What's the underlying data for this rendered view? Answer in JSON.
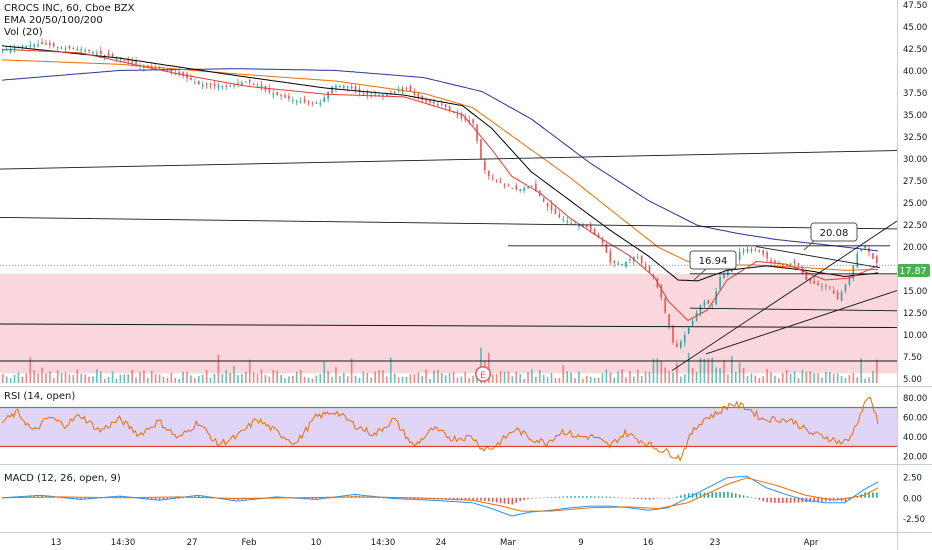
{
  "colors": {
    "up": "#26a69a",
    "down": "#ef5350",
    "ema20": "#e53935",
    "ema50": "#000000",
    "ema100": "#ef6c00",
    "ema200": "#283593",
    "rsi_line": "#ef6c00",
    "rsi_upper": "#43a047",
    "rsi_lower": "#e53935",
    "rsi_band": "#e1d5f7",
    "zone": "#f8c9d2",
    "macd_line": "#2196f3",
    "signal_line": "#ef6c00",
    "price_badge": "#4caf50"
  },
  "main": {
    "title": "CROCS INC, 60, Cboe BZX",
    "ema_label": "EMA 20/50/100/200",
    "vol_label": "Vol (20)",
    "price_badge": "17.87",
    "callout_low": "16.94",
    "callout_high": "20.08",
    "earnings_marker": "E"
  },
  "rsi": {
    "label": "RSI (14, open)"
  },
  "macd": {
    "label": "MACD (12, 26, open, 9)"
  },
  "chart_data": [
    {
      "type": "candlestick",
      "title": "CROCS INC, 60, Cboe BZX",
      "y_ticks": [
        "47.50",
        "45.00",
        "42.50",
        "40.00",
        "37.50",
        "35.00",
        "32.50",
        "30.00",
        "27.50",
        "25.00",
        "22.50",
        "20.00",
        "17.50",
        "15.00",
        "12.50",
        "10.00",
        "7.50",
        "5.00"
      ],
      "ylim": [
        4.5,
        48
      ],
      "x_ticks": [
        "13",
        "14:30",
        "27",
        "Feb",
        "10",
        "14:30",
        "24",
        "Mar",
        "9",
        "16",
        "23",
        "Apr"
      ],
      "price_path": [
        [
          0,
          42.3
        ],
        [
          10,
          42.8
        ],
        [
          20,
          43.0
        ],
        [
          30,
          42.6
        ],
        [
          40,
          42.4
        ],
        [
          55,
          41.6
        ],
        [
          70,
          40.6
        ],
        [
          90,
          39.6
        ],
        [
          100,
          38.4
        ],
        [
          115,
          38.2
        ],
        [
          125,
          38.8
        ],
        [
          135,
          37.6
        ],
        [
          150,
          36.5
        ],
        [
          162,
          36.3
        ],
        [
          168,
          38.2
        ],
        [
          175,
          38.3
        ],
        [
          185,
          37.2
        ],
        [
          197,
          37.3
        ],
        [
          205,
          38.1
        ],
        [
          215,
          36.5
        ],
        [
          225,
          36.0
        ],
        [
          235,
          34.4
        ],
        [
          240,
          34.0
        ],
        [
          243,
          31.0
        ],
        [
          245,
          29.0
        ],
        [
          248,
          28.0
        ],
        [
          252,
          27.5
        ],
        [
          257,
          26.9
        ],
        [
          263,
          26.4
        ],
        [
          270,
          26.9
        ],
        [
          278,
          24.5
        ],
        [
          284,
          23.3
        ],
        [
          291,
          22.6
        ],
        [
          297,
          22.4
        ],
        [
          305,
          20.9
        ],
        [
          310,
          18.2
        ],
        [
          316,
          18.0
        ],
        [
          323,
          19.0
        ],
        [
          327,
          17.8
        ],
        [
          332,
          16.5
        ],
        [
          336,
          14.2
        ],
        [
          340,
          10.8
        ],
        [
          343,
          8.3
        ],
        [
          347,
          9.5
        ],
        [
          352,
          11.6
        ],
        [
          357,
          13.8
        ],
        [
          362,
          13.3
        ],
        [
          366,
          16.5
        ],
        [
          372,
          17.8
        ],
        [
          376,
          19.4
        ],
        [
          381,
          19.8
        ],
        [
          387,
          19.3
        ],
        [
          392,
          18.2
        ],
        [
          398,
          17.9
        ],
        [
          404,
          18.1
        ],
        [
          410,
          16.2
        ],
        [
          416,
          15.6
        ],
        [
          422,
          15.3
        ],
        [
          426,
          14.0
        ],
        [
          432,
          16.5
        ],
        [
          436,
          19.2
        ],
        [
          440,
          20.1
        ],
        [
          444,
          18.6
        ],
        [
          447,
          17.87
        ]
      ],
      "ema20_path": [
        [
          0,
          42.4
        ],
        [
          40,
          42.0
        ],
        [
          90,
          39.6
        ],
        [
          125,
          38.2
        ],
        [
          165,
          37.3
        ],
        [
          205,
          37.0
        ],
        [
          235,
          35.0
        ],
        [
          250,
          31.0
        ],
        [
          260,
          28.0
        ],
        [
          275,
          26.0
        ],
        [
          290,
          23.2
        ],
        [
          305,
          21.0
        ],
        [
          320,
          19.0
        ],
        [
          333,
          16.5
        ],
        [
          340,
          13.8
        ],
        [
          350,
          11.6
        ],
        [
          360,
          12.8
        ],
        [
          370,
          16.2
        ],
        [
          385,
          18.3
        ],
        [
          400,
          18.0
        ],
        [
          420,
          16.2
        ],
        [
          432,
          16.4
        ],
        [
          447,
          17.8
        ]
      ],
      "ema50_path": [
        [
          0,
          42.8
        ],
        [
          60,
          41.4
        ],
        [
          120,
          39.4
        ],
        [
          165,
          38.0
        ],
        [
          205,
          37.2
        ],
        [
          235,
          36.0
        ],
        [
          250,
          33.4
        ],
        [
          270,
          28.5
        ],
        [
          290,
          25.2
        ],
        [
          310,
          21.9
        ],
        [
          330,
          18.9
        ],
        [
          345,
          16.2
        ],
        [
          355,
          16.1
        ],
        [
          370,
          17.3
        ],
        [
          390,
          17.8
        ],
        [
          410,
          17.3
        ],
        [
          430,
          16.6
        ],
        [
          447,
          17.0
        ]
      ],
      "ema100_path": [
        [
          0,
          41.2
        ],
        [
          60,
          40.7
        ],
        [
          120,
          39.6
        ],
        [
          170,
          38.8
        ],
        [
          215,
          37.4
        ],
        [
          240,
          35.8
        ],
        [
          260,
          32.6
        ],
        [
          290,
          27.8
        ],
        [
          315,
          23.4
        ],
        [
          335,
          19.9
        ],
        [
          350,
          18.3
        ],
        [
          365,
          17.9
        ],
        [
          385,
          17.9
        ],
        [
          410,
          17.6
        ],
        [
          430,
          17.3
        ],
        [
          447,
          17.4
        ]
      ],
      "ema200_path": [
        [
          0,
          38.9
        ],
        [
          60,
          40.0
        ],
        [
          120,
          40.2
        ],
        [
          170,
          40.0
        ],
        [
          215,
          39.2
        ],
        [
          245,
          37.6
        ],
        [
          270,
          34.5
        ],
        [
          300,
          29.5
        ],
        [
          330,
          25.2
        ],
        [
          355,
          22.4
        ],
        [
          375,
          21.5
        ],
        [
          395,
          20.8
        ],
        [
          420,
          20.2
        ],
        [
          447,
          19.5
        ]
      ],
      "horizontal_levels": [
        20.08,
        17.87
      ],
      "lower_zone": [
        5.6,
        16.9
      ]
    },
    {
      "type": "line",
      "title": "RSI (14, open)",
      "y_ticks": [
        "80.00",
        "60.00",
        "40.00",
        "20.00"
      ],
      "ylim": [
        14,
        90
      ],
      "levels": [
        70,
        30
      ],
      "rsi_path": [
        [
          0,
          55
        ],
        [
          8,
          65
        ],
        [
          16,
          45
        ],
        [
          24,
          60
        ],
        [
          32,
          52
        ],
        [
          40,
          62
        ],
        [
          50,
          46
        ],
        [
          60,
          58
        ],
        [
          70,
          42
        ],
        [
          80,
          56
        ],
        [
          90,
          38
        ],
        [
          100,
          55
        ],
        [
          110,
          32
        ],
        [
          120,
          40
        ],
        [
          130,
          58
        ],
        [
          140,
          45
        ],
        [
          150,
          33
        ],
        [
          160,
          60
        ],
        [
          170,
          66
        ],
        [
          180,
          52
        ],
        [
          190,
          42
        ],
        [
          200,
          58
        ],
        [
          210,
          30
        ],
        [
          220,
          48
        ],
        [
          230,
          38
        ],
        [
          240,
          40
        ],
        [
          245,
          28
        ],
        [
          250,
          28
        ],
        [
          255,
          36
        ],
        [
          262,
          48
        ],
        [
          270,
          38
        ],
        [
          278,
          34
        ],
        [
          286,
          46
        ],
        [
          294,
          40
        ],
        [
          302,
          40
        ],
        [
          310,
          30
        ],
        [
          318,
          44
        ],
        [
          326,
          36
        ],
        [
          334,
          28
        ],
        [
          340,
          24
        ],
        [
          346,
          18
        ],
        [
          352,
          44
        ],
        [
          358,
          58
        ],
        [
          365,
          64
        ],
        [
          372,
          74
        ],
        [
          380,
          70
        ],
        [
          388,
          58
        ],
        [
          396,
          58
        ],
        [
          404,
          56
        ],
        [
          412,
          44
        ],
        [
          420,
          40
        ],
        [
          428,
          34
        ],
        [
          432,
          36
        ],
        [
          437,
          58
        ],
        [
          442,
          82
        ],
        [
          447,
          56
        ]
      ]
    },
    {
      "type": "bar",
      "title": "MACD (12, 26, open, 9)",
      "y_ticks": [
        "2.50",
        "0.00",
        "-2.50"
      ],
      "ylim": [
        -4,
        3.7
      ],
      "macd_path": [
        [
          0,
          0
        ],
        [
          20,
          0.3
        ],
        [
          40,
          -0.2
        ],
        [
          60,
          0.2
        ],
        [
          80,
          -0.3
        ],
        [
          100,
          0.3
        ],
        [
          120,
          -0.4
        ],
        [
          140,
          0.1
        ],
        [
          160,
          -0.2
        ],
        [
          180,
          0.4
        ],
        [
          200,
          -0.1
        ],
        [
          220,
          -0.3
        ],
        [
          240,
          -0.6
        ],
        [
          250,
          -1.3
        ],
        [
          260,
          -2.2
        ],
        [
          270,
          -1.7
        ],
        [
          280,
          -1.5
        ],
        [
          290,
          -1.2
        ],
        [
          300,
          -1.0
        ],
        [
          310,
          -1.0
        ],
        [
          320,
          -1.2
        ],
        [
          330,
          -1.5
        ],
        [
          340,
          -1.2
        ],
        [
          350,
          0.0
        ],
        [
          360,
          1.2
        ],
        [
          370,
          2.4
        ],
        [
          380,
          2.6
        ],
        [
          390,
          1.2
        ],
        [
          400,
          0.4
        ],
        [
          410,
          -0.3
        ],
        [
          420,
          -0.6
        ],
        [
          430,
          -0.6
        ],
        [
          440,
          1.0
        ],
        [
          447,
          1.9
        ]
      ],
      "signal_path": [
        [
          0,
          0
        ],
        [
          30,
          0.1
        ],
        [
          60,
          0.0
        ],
        [
          90,
          0.1
        ],
        [
          120,
          -0.1
        ],
        [
          150,
          0.0
        ],
        [
          180,
          0.1
        ],
        [
          210,
          0.0
        ],
        [
          240,
          -0.3
        ],
        [
          255,
          -1.0
        ],
        [
          265,
          -1.6
        ],
        [
          280,
          -1.6
        ],
        [
          300,
          -1.2
        ],
        [
          320,
          -1.1
        ],
        [
          335,
          -1.3
        ],
        [
          350,
          -0.6
        ],
        [
          360,
          0.5
        ],
        [
          370,
          1.6
        ],
        [
          380,
          2.4
        ],
        [
          395,
          1.5
        ],
        [
          410,
          0.3
        ],
        [
          425,
          -0.3
        ],
        [
          440,
          0.3
        ],
        [
          447,
          1.2
        ]
      ]
    }
  ]
}
